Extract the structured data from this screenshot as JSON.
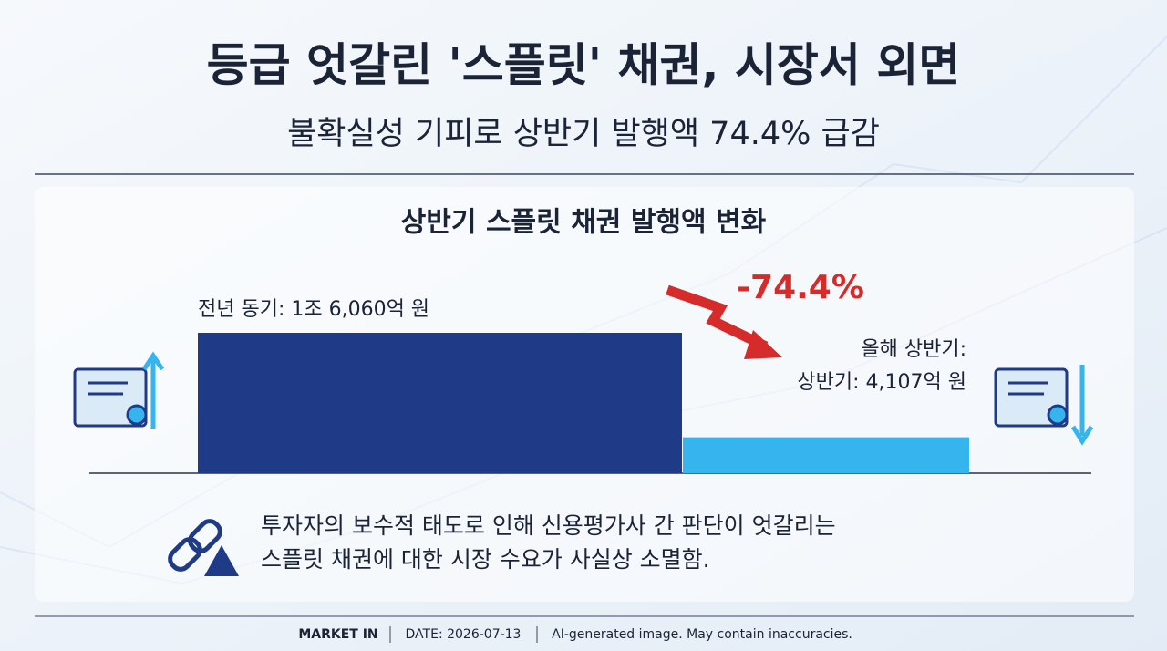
{
  "header": {
    "title": "등급 엇갈린 '스플릿' 채권, 시장서 외면",
    "subtitle": "불확실성 기피로 상반기 발행액 74.4% 급감"
  },
  "chart_data": {
    "type": "bar",
    "title": "상반기 스플릿 채권 발행액 변화",
    "values": [
      16060,
      4107
    ],
    "value_labels": [
      "전년 동기: 1조 6,060억 원",
      "상반기: 4,107억 원"
    ],
    "colors": [
      "#1f3a87",
      "#36b4ee"
    ],
    "annotations": [
      "-74.4%",
      "올해 상반기:"
    ]
  },
  "note": {
    "lines": [
      "투자자의 보수적 태도로 인해 신용평가사 간 판단이 엇갈리는",
      "스플릿 채권에 대한 시장 수요가 사실상 소멸함."
    ]
  },
  "footer": {
    "source": "MARKET IN",
    "date": "DATE: 2026-07-13",
    "disclaimer": "AI-generated image. May contain inaccuracies."
  }
}
